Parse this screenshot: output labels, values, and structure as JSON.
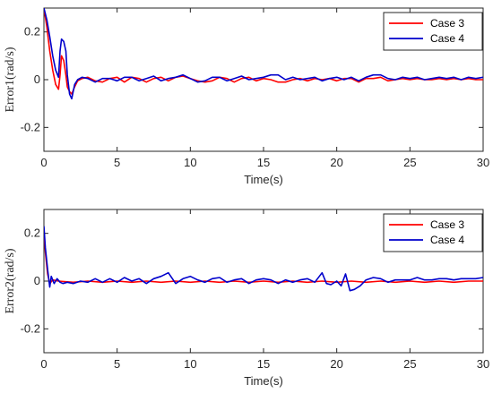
{
  "chart_data": [
    {
      "type": "line",
      "xlabel": "Time(s)",
      "ylabel": "Error1(rad/s)",
      "xlim": [
        0,
        30
      ],
      "ylim": [
        -0.3,
        0.3
      ],
      "xticks": [
        0,
        5,
        10,
        15,
        20,
        25,
        30
      ],
      "yticks": [
        -0.2,
        0,
        0.2
      ],
      "legend": "top-right",
      "grid": false,
      "series": [
        {
          "name": "Case 3",
          "color": "#ff0000",
          "x": [
            0,
            0.2,
            0.4,
            0.6,
            0.8,
            1.0,
            1.1,
            1.2,
            1.35,
            1.5,
            1.6,
            1.75,
            1.9,
            2.1,
            2.3,
            2.6,
            3,
            3.5,
            4,
            4.5,
            5,
            5.5,
            6,
            6.5,
            7,
            7.5,
            8,
            8.5,
            9,
            9.5,
            10,
            10.5,
            11,
            11.5,
            12,
            12.5,
            13,
            13.5,
            14,
            14.5,
            15,
            15.5,
            16,
            16.5,
            17,
            17.5,
            18,
            18.5,
            19,
            19.5,
            20,
            20.5,
            21,
            21.5,
            22,
            22.5,
            23,
            23.5,
            24,
            24.5,
            25,
            25.5,
            26,
            26.5,
            27,
            27.5,
            28,
            28.5,
            29,
            29.5,
            30
          ],
          "values": [
            0.3,
            0.22,
            0.12,
            0.04,
            -0.02,
            -0.04,
            0.02,
            0.1,
            0.08,
            0.02,
            -0.03,
            -0.05,
            -0.06,
            -0.03,
            -0.005,
            0.005,
            0.01,
            -0.005,
            -0.01,
            0.005,
            0.01,
            -0.01,
            0.01,
            0.005,
            -0.01,
            0.005,
            0.01,
            -0.005,
            0.01,
            0.015,
            0.005,
            -0.005,
            -0.01,
            -0.005,
            0.01,
            0.005,
            -0.01,
            0.005,
            0.01,
            -0.005,
            0.005,
            0.0,
            -0.01,
            -0.01,
            0.0,
            0.005,
            -0.005,
            0.005,
            0.0,
            0.005,
            -0.005,
            0.005,
            0.005,
            -0.01,
            0.005,
            0.005,
            0.01,
            -0.005,
            0.0,
            0.005,
            0.0,
            0.005,
            0.0,
            0.0,
            0.005,
            0.0,
            0.005,
            0.0,
            0.005,
            0.0,
            0.0
          ]
        },
        {
          "name": "Case 4",
          "color": "#0000cc",
          "x": [
            0,
            0.2,
            0.4,
            0.6,
            0.8,
            1.0,
            1.1,
            1.2,
            1.35,
            1.5,
            1.6,
            1.75,
            1.9,
            2.1,
            2.3,
            2.6,
            3,
            3.5,
            4,
            4.5,
            5,
            5.5,
            6,
            6.5,
            7,
            7.5,
            8,
            8.5,
            9,
            9.5,
            10,
            10.5,
            11,
            11.5,
            12,
            12.5,
            13,
            13.5,
            14,
            14.5,
            15,
            15.5,
            16,
            16.5,
            17,
            17.5,
            18,
            18.5,
            19,
            19.5,
            20,
            20.5,
            21,
            21.5,
            22,
            22.5,
            23,
            23.5,
            24,
            24.5,
            25,
            25.5,
            26,
            26.5,
            27,
            27.5,
            28,
            28.5,
            29,
            29.5,
            30
          ],
          "values": [
            0.3,
            0.25,
            0.18,
            0.1,
            0.04,
            0.01,
            0.12,
            0.17,
            0.16,
            0.12,
            0.02,
            -0.06,
            -0.08,
            -0.02,
            0.0,
            0.01,
            0.005,
            -0.01,
            0.005,
            0.005,
            -0.005,
            0.01,
            0.01,
            -0.005,
            0.005,
            0.015,
            -0.005,
            0.005,
            0.01,
            0.02,
            0.005,
            -0.01,
            -0.005,
            0.01,
            0.01,
            -0.005,
            0.005,
            0.015,
            0.0,
            0.005,
            0.01,
            0.02,
            0.02,
            0.0,
            0.01,
            0.0,
            0.005,
            0.01,
            -0.005,
            0.005,
            0.01,
            0.0,
            0.01,
            -0.005,
            0.01,
            0.02,
            0.02,
            0.005,
            0.0,
            0.01,
            0.005,
            0.01,
            0.0,
            0.005,
            0.01,
            0.005,
            0.01,
            0.0,
            0.01,
            0.005,
            0.01
          ]
        }
      ]
    },
    {
      "type": "line",
      "xlabel": "Time(s)",
      "ylabel": "Error2(rad/s)",
      "xlim": [
        0,
        30
      ],
      "ylim": [
        -0.3,
        0.3
      ],
      "xticks": [
        0,
        5,
        10,
        15,
        20,
        25,
        30
      ],
      "yticks": [
        -0.2,
        0,
        0.2
      ],
      "legend": "top-right",
      "grid": false,
      "series": [
        {
          "name": "Case 3",
          "color": "#ff0000",
          "x": [
            0,
            0.1,
            0.25,
            0.4,
            0.6,
            1,
            2,
            3,
            4,
            5,
            6,
            7,
            8,
            9,
            10,
            11,
            12,
            13,
            14,
            15,
            16,
            17,
            18,
            19,
            20,
            21,
            22,
            23,
            24,
            25,
            26,
            27,
            28,
            29,
            30
          ],
          "values": [
            0.21,
            0.12,
            0.03,
            -0.01,
            0.005,
            0.0,
            -0.005,
            0.0,
            -0.005,
            0.0,
            -0.005,
            0.0,
            -0.005,
            0.0,
            -0.005,
            0.0,
            -0.005,
            0.0,
            -0.005,
            0.0,
            -0.005,
            0.0,
            -0.005,
            0.0,
            -0.005,
            0.0,
            -0.005,
            0.0,
            -0.005,
            0.0,
            -0.005,
            0.0,
            -0.005,
            0.0,
            0.0
          ]
        },
        {
          "name": "Case 4",
          "color": "#0000cc",
          "x": [
            0,
            0.1,
            0.25,
            0.4,
            0.5,
            0.7,
            0.9,
            1.1,
            1.3,
            1.6,
            2,
            2.5,
            3,
            3.5,
            4,
            4.5,
            5,
            5.5,
            6,
            6.5,
            7,
            7.5,
            8,
            8.5,
            9,
            9.5,
            10,
            10.5,
            11,
            11.5,
            12,
            12.5,
            13,
            13.5,
            14,
            14.5,
            15,
            15.5,
            16,
            16.5,
            17,
            17.5,
            18,
            18.5,
            19,
            19.3,
            19.6,
            20,
            20.3,
            20.6,
            20.9,
            21.2,
            21.6,
            22,
            22.5,
            23,
            23.5,
            24,
            24.5,
            25,
            25.5,
            26,
            26.5,
            27,
            27.5,
            28,
            28.5,
            29,
            29.5,
            30
          ],
          "values": [
            0.23,
            0.14,
            0.05,
            -0.025,
            0.02,
            -0.01,
            0.01,
            -0.005,
            -0.01,
            -0.005,
            -0.01,
            0.0,
            -0.005,
            0.01,
            -0.005,
            0.01,
            -0.005,
            0.015,
            0.0,
            0.01,
            -0.01,
            0.01,
            0.02,
            0.035,
            -0.01,
            0.01,
            0.02,
            0.005,
            -0.005,
            0.01,
            0.015,
            -0.005,
            0.005,
            0.01,
            -0.01,
            0.005,
            0.01,
            0.005,
            -0.01,
            0.005,
            -0.005,
            0.005,
            0.01,
            -0.005,
            0.035,
            -0.01,
            -0.015,
            0.0,
            -0.02,
            0.03,
            -0.04,
            -0.035,
            -0.02,
            0.005,
            0.015,
            0.01,
            -0.005,
            0.005,
            0.005,
            0.005,
            0.015,
            0.005,
            0.005,
            0.01,
            0.01,
            0.005,
            0.01,
            0.01,
            0.01,
            0.015
          ]
        }
      ]
    }
  ]
}
